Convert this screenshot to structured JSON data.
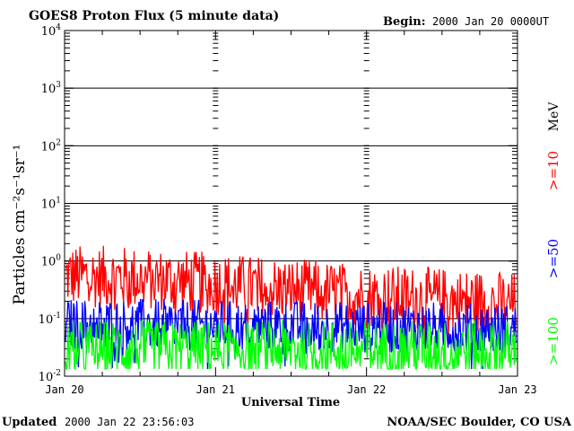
{
  "header": {
    "title": "GOES8 Proton Flux (5 minute data)",
    "begin_label": "Begin:",
    "begin_value": "2000 Jan 20 0000UT"
  },
  "footer": {
    "updated_label": "Updated",
    "updated_value": "2000 Jan 22 23:56:03",
    "credit": "NOAA/SEC Boulder, CO USA"
  },
  "chart_data": {
    "type": "line",
    "title": "GOES8 Proton Flux (5 minute data)",
    "xlabel": "Universal Time",
    "ylabel": "Particles cm⁻²s⁻¹sr⁻¹",
    "y_scale": "log",
    "ylim": [
      0.01,
      10000
    ],
    "y_ticks": [
      {
        "base": "10",
        "exp": "-2"
      },
      {
        "base": "10",
        "exp": "-1"
      },
      {
        "base": "10",
        "exp": "0"
      },
      {
        "base": "10",
        "exp": "1"
      },
      {
        "base": "10",
        "exp": "2"
      },
      {
        "base": "10",
        "exp": "3"
      },
      {
        "base": "10",
        "exp": "4"
      }
    ],
    "x_ticks": [
      "Jan 20",
      "Jan 21",
      "Jan 22",
      "Jan 23"
    ],
    "xlim": [
      "2000-01-20",
      "2000-01-23"
    ],
    "grid": true,
    "unit_label": "MeV",
    "series": [
      {
        "name": ">=10",
        "color": "#ff0000",
        "x": [
          "2000-01-20",
          "2000-01-20T12:00",
          "2000-01-21",
          "2000-01-21T12:00",
          "2000-01-22",
          "2000-01-22T12:00",
          "2000-01-23"
        ],
        "values": [
          0.55,
          0.5,
          0.4,
          0.32,
          0.25,
          0.22,
          0.18
        ]
      },
      {
        "name": ">=50",
        "color": "#0000ff",
        "x": [
          "2000-01-20",
          "2000-01-20T12:00",
          "2000-01-21",
          "2000-01-21T12:00",
          "2000-01-22",
          "2000-01-22T12:00",
          "2000-01-23"
        ],
        "values": [
          0.08,
          0.08,
          0.075,
          0.075,
          0.07,
          0.07,
          0.065
        ]
      },
      {
        "name": ">=100",
        "color": "#00ff00",
        "x": [
          "2000-01-20",
          "2000-01-20T12:00",
          "2000-01-21",
          "2000-01-21T12:00",
          "2000-01-22",
          "2000-01-22T12:00",
          "2000-01-23"
        ],
        "values": [
          0.03,
          0.03,
          0.03,
          0.03,
          0.03,
          0.03,
          0.03
        ]
      }
    ]
  }
}
